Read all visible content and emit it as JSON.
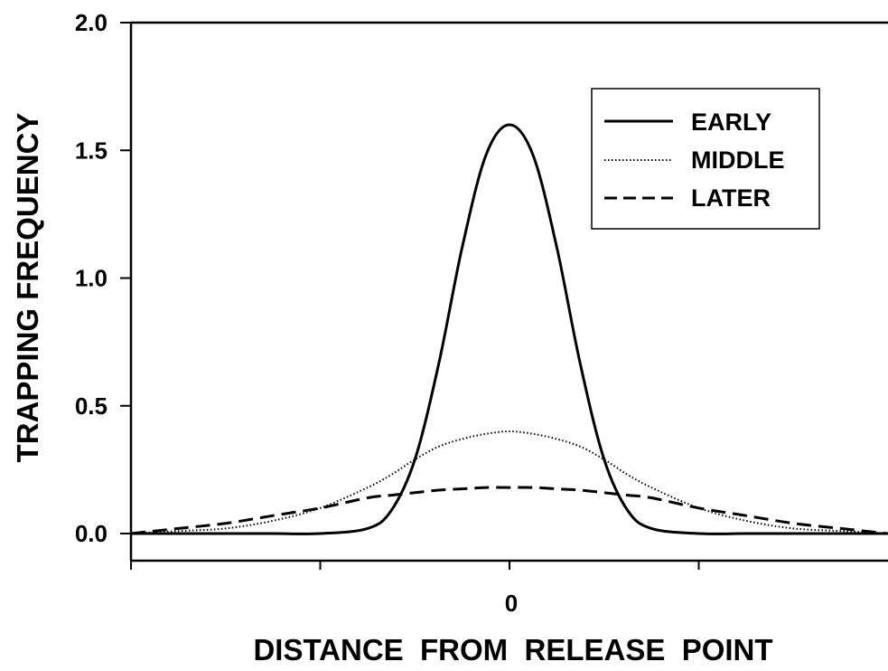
{
  "chart_data": {
    "type": "line",
    "title": "",
    "xlabel": "DISTANCE  FROM  RELEASE  POINT",
    "ylabel": "TRAPPING  FREQUENCY",
    "ylim": [
      0,
      2.0
    ],
    "xlim": [
      -4,
      4
    ],
    "y_ticks": [
      "0.0",
      "0.5",
      "1.0",
      "1.5",
      "2.0"
    ],
    "y_tick_values": [
      0,
      0.5,
      1.0,
      1.5,
      2.0
    ],
    "x_tick_values": [
      -4,
      -2,
      0,
      2
    ],
    "x_tick_labels": [
      "",
      "",
      "0",
      ""
    ],
    "grid": false,
    "legend_position": "top-right",
    "x": [
      -4.0,
      -3.5,
      -3.0,
      -2.5,
      -2.0,
      -1.5,
      -1.25,
      -1.0,
      -0.75,
      -0.5,
      -0.25,
      0.0,
      0.25,
      0.5,
      0.75,
      1.0,
      1.25,
      1.5,
      2.0,
      2.5,
      3.0,
      3.5,
      4.0
    ],
    "series": [
      {
        "name": "EARLY",
        "style": "solid",
        "values": [
          0.0,
          0.0,
          0.0,
          0.0,
          0.0,
          0.02,
          0.09,
          0.29,
          0.66,
          1.12,
          1.48,
          1.6,
          1.48,
          1.12,
          0.66,
          0.29,
          0.09,
          0.02,
          0.0,
          0.0,
          0.0,
          0.0,
          0.0
        ]
      },
      {
        "name": "MIDDLE",
        "style": "dotted",
        "values": [
          0.0,
          0.01,
          0.02,
          0.05,
          0.1,
          0.18,
          0.23,
          0.29,
          0.34,
          0.37,
          0.39,
          0.4,
          0.39,
          0.37,
          0.34,
          0.29,
          0.23,
          0.18,
          0.1,
          0.05,
          0.02,
          0.01,
          0.0
        ]
      },
      {
        "name": "LATER",
        "style": "dashed",
        "values": [
          0.0,
          0.02,
          0.04,
          0.07,
          0.1,
          0.14,
          0.15,
          0.16,
          0.17,
          0.175,
          0.18,
          0.18,
          0.18,
          0.175,
          0.17,
          0.16,
          0.15,
          0.14,
          0.1,
          0.07,
          0.04,
          0.02,
          0.0
        ]
      }
    ]
  }
}
